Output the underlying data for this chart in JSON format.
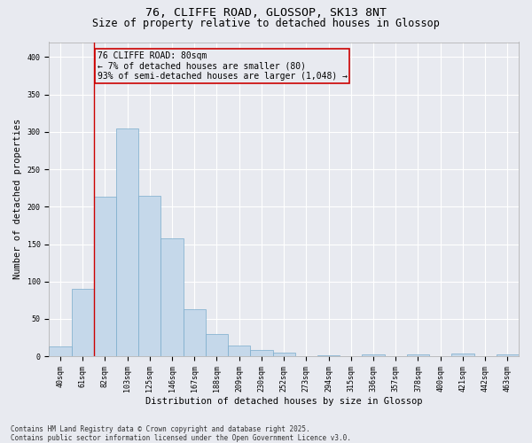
{
  "title_line1": "76, CLIFFE ROAD, GLOSSOP, SK13 8NT",
  "title_line2": "Size of property relative to detached houses in Glossop",
  "xlabel": "Distribution of detached houses by size in Glossop",
  "ylabel": "Number of detached properties",
  "categories": [
    "40sqm",
    "61sqm",
    "82sqm",
    "103sqm",
    "125sqm",
    "146sqm",
    "167sqm",
    "188sqm",
    "209sqm",
    "230sqm",
    "252sqm",
    "273sqm",
    "294sqm",
    "315sqm",
    "336sqm",
    "357sqm",
    "378sqm",
    "400sqm",
    "421sqm",
    "442sqm",
    "463sqm"
  ],
  "values": [
    13,
    90,
    213,
    305,
    215,
    158,
    63,
    30,
    15,
    9,
    5,
    0,
    2,
    0,
    3,
    0,
    3,
    0,
    4,
    0,
    3
  ],
  "bar_color": "#c5d8ea",
  "bar_edgecolor": "#7aabcc",
  "bg_color": "#e8eaf0",
  "grid_color": "#ffffff",
  "annotation_box_text": "76 CLIFFE ROAD: 80sqm\n← 7% of detached houses are smaller (80)\n93% of semi-detached houses are larger (1,048) →",
  "annotation_box_color": "#cc0000",
  "vline_color": "#cc0000",
  "vline_x_index": 1.5,
  "ylim": [
    0,
    420
  ],
  "yticks": [
    0,
    50,
    100,
    150,
    200,
    250,
    300,
    350,
    400
  ],
  "footnote": "Contains HM Land Registry data © Crown copyright and database right 2025.\nContains public sector information licensed under the Open Government Licence v3.0.",
  "title_fontsize": 9.5,
  "subtitle_fontsize": 8.5,
  "axis_label_fontsize": 7.5,
  "tick_fontsize": 6,
  "annotation_fontsize": 7,
  "footnote_fontsize": 5.5
}
